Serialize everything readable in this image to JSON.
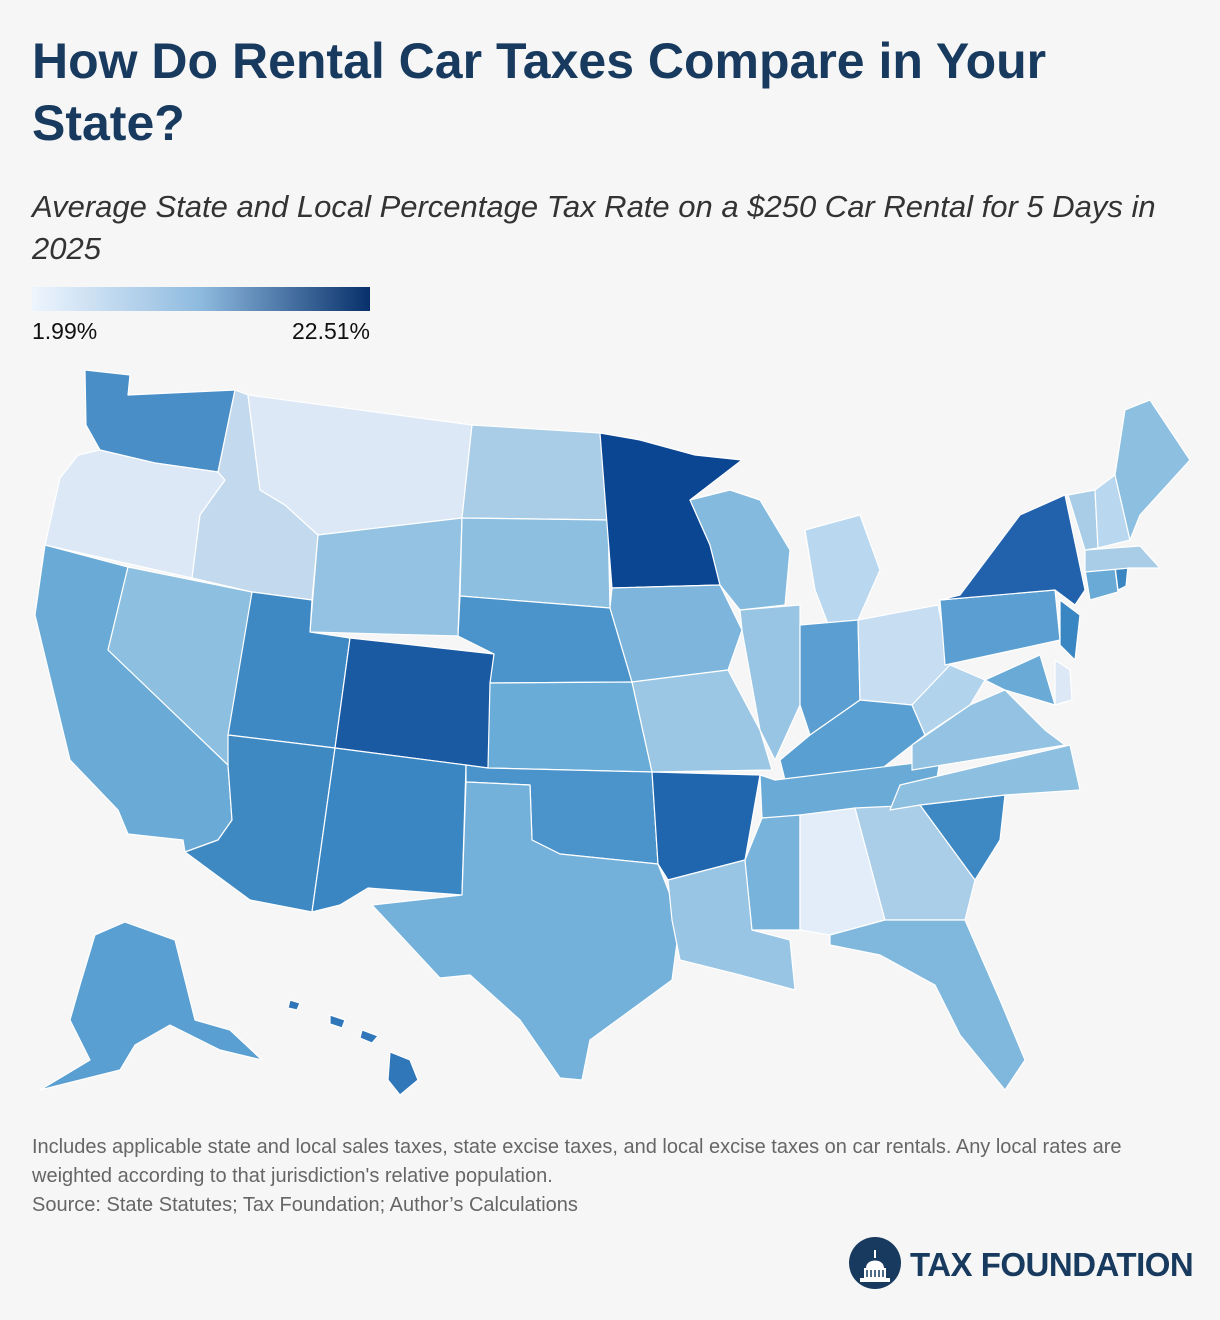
{
  "header": {
    "title": "How Do Rental Car Taxes Compare in Your State?",
    "subtitle": "Average State and Local Percentage Tax Rate on a $250 Car Rental for 5 Days in 2025"
  },
  "legend": {
    "min_label": "1.99%",
    "max_label": "22.51%",
    "color_low": "#eef5fd",
    "color_mid": "#8ebadf",
    "color_high": "#08306b"
  },
  "map": {
    "type": "choropleth",
    "scale_range": [
      1.99,
      22.51
    ],
    "states": [
      {
        "id": "WA",
        "color": "#4a8ec8"
      },
      {
        "id": "OR",
        "color": "#dce8f6"
      },
      {
        "id": "CA",
        "color": "#6aaad6"
      },
      {
        "id": "NV",
        "color": "#8dbfe0"
      },
      {
        "id": "ID",
        "color": "#c3d9ee"
      },
      {
        "id": "MT",
        "color": "#dce8f6"
      },
      {
        "id": "WY",
        "color": "#93c2e2"
      },
      {
        "id": "UT",
        "color": "#3e89c4"
      },
      {
        "id": "AZ",
        "color": "#3f89c3"
      },
      {
        "id": "CO",
        "color": "#1a5aa3"
      },
      {
        "id": "NM",
        "color": "#3a86c2"
      },
      {
        "id": "ND",
        "color": "#a9cde7"
      },
      {
        "id": "SD",
        "color": "#8dbfe0"
      },
      {
        "id": "NE",
        "color": "#4a93cb"
      },
      {
        "id": "KS",
        "color": "#6aacd8"
      },
      {
        "id": "OK",
        "color": "#4a93cb"
      },
      {
        "id": "TX",
        "color": "#74b1da"
      },
      {
        "id": "MN",
        "color": "#0b4693"
      },
      {
        "id": "IA",
        "color": "#7db5dc"
      },
      {
        "id": "MO",
        "color": "#9cc7e4"
      },
      {
        "id": "AR",
        "color": "#1f66ae"
      },
      {
        "id": "LA",
        "color": "#99c5e4"
      },
      {
        "id": "WI",
        "color": "#85badf"
      },
      {
        "id": "IL",
        "color": "#99c5e4"
      },
      {
        "id": "MI",
        "color": "#b9d7ee"
      },
      {
        "id": "IN",
        "color": "#5b9fd2"
      },
      {
        "id": "OH",
        "color": "#c7ddf1"
      },
      {
        "id": "KY",
        "color": "#5a9fd1"
      },
      {
        "id": "TN",
        "color": "#6aaad6"
      },
      {
        "id": "MS",
        "color": "#77b3da"
      },
      {
        "id": "AL",
        "color": "#e3edf9"
      },
      {
        "id": "GA",
        "color": "#aacde8"
      },
      {
        "id": "FL",
        "color": "#80b8dd"
      },
      {
        "id": "SC",
        "color": "#3e89c4"
      },
      {
        "id": "NC",
        "color": "#8dbfe0"
      },
      {
        "id": "VA",
        "color": "#93c2e2"
      },
      {
        "id": "WV",
        "color": "#b2d3ec"
      },
      {
        "id": "PA",
        "color": "#5b9fd2"
      },
      {
        "id": "NY",
        "color": "#2261ac"
      },
      {
        "id": "NJ",
        "color": "#3a86c2"
      },
      {
        "id": "MD",
        "color": "#6aaad6"
      },
      {
        "id": "DE",
        "color": "#dce8f6"
      },
      {
        "id": "CT",
        "color": "#6aaad6"
      },
      {
        "id": "RI",
        "color": "#3a86c2"
      },
      {
        "id": "MA",
        "color": "#a9cde7"
      },
      {
        "id": "VT",
        "color": "#a9cde7"
      },
      {
        "id": "NH",
        "color": "#b9d7ee"
      },
      {
        "id": "ME",
        "color": "#8dbfe0"
      },
      {
        "id": "AK",
        "color": "#5a9fd1"
      },
      {
        "id": "HI",
        "color": "#3077ba"
      }
    ]
  },
  "footer": {
    "note": "Includes applicable state and local sales taxes, state excise taxes, and local excise taxes on car rentals. Any local rates are weighted according to that jurisdiction's relative population.",
    "source": "Source: State Statutes; Tax Foundation; Author’s Calculations",
    "logo_text": "TAX FOUNDATION"
  }
}
